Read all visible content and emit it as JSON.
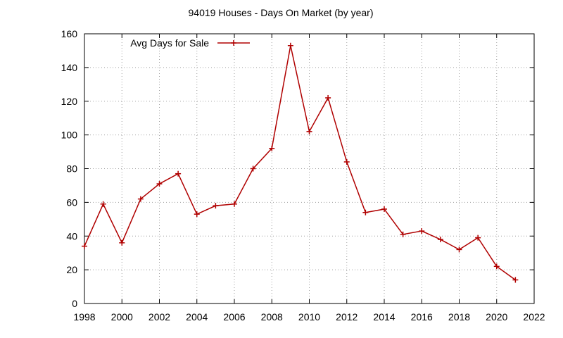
{
  "chart_data": {
    "type": "line",
    "title": "94019 Houses - Days On Market (by year)",
    "xlabel": "",
    "ylabel": "",
    "xlim": [
      1998,
      2022
    ],
    "ylim": [
      0,
      160
    ],
    "xticks": [
      1998,
      2000,
      2002,
      2004,
      2006,
      2008,
      2010,
      2012,
      2014,
      2016,
      2018,
      2020,
      2022
    ],
    "yticks": [
      0,
      20,
      40,
      60,
      80,
      100,
      120,
      140,
      160
    ],
    "grid": true,
    "legend_position": "top-left",
    "series": [
      {
        "name": "Avg Days for Sale",
        "color": "#b00000",
        "marker": "plus",
        "x": [
          1998,
          1999,
          2000,
          2001,
          2002,
          2003,
          2004,
          2005,
          2006,
          2007,
          2008,
          2009,
          2010,
          2011,
          2012,
          2013,
          2014,
          2015,
          2016,
          2017,
          2018,
          2019,
          2020,
          2021
        ],
        "y": [
          34,
          59,
          36,
          62,
          71,
          77,
          53,
          58,
          59,
          80,
          92,
          153,
          102,
          122,
          84,
          54,
          56,
          41,
          43,
          38,
          32,
          39,
          22,
          14
        ]
      }
    ]
  }
}
